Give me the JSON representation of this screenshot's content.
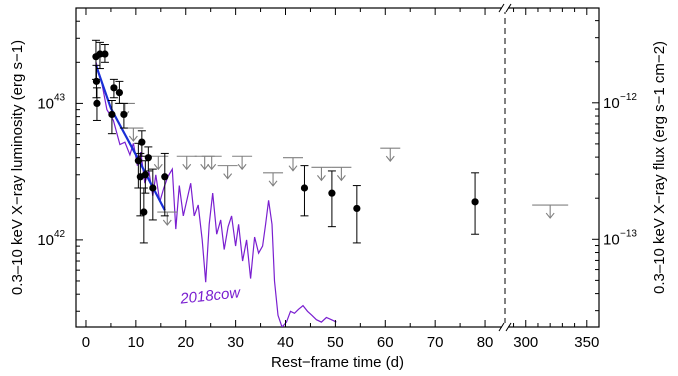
{
  "chart_data": {
    "type": "scatter",
    "title": "",
    "xlabel": "Rest−frame time (d)",
    "ylabel_left": "0.3–10 keV X−ray luminosity (erg s−1)",
    "ylabel_right": "0.3–10 keV X−ray flux (erg s−1 cm−2)",
    "x_axis_segments": [
      {
        "xlim": [
          -2,
          84
        ],
        "ticks": [
          "0",
          "10",
          "20",
          "30",
          "40",
          "50",
          "60",
          "70",
          "80"
        ],
        "tick_values": [
          0,
          10,
          20,
          30,
          40,
          50,
          60,
          70,
          80
        ]
      },
      {
        "xlim": [
          283,
          360
        ],
        "ticks": [
          "300",
          "350"
        ],
        "tick_values": [
          300,
          350
        ]
      }
    ],
    "yscale": "log",
    "ylim": [
      2.3e+41,
      5e+43
    ],
    "left_ticks": [
      {
        "label_base": "10",
        "label_exp": "42",
        "value": 1e+42
      },
      {
        "label_base": "10",
        "label_exp": "43",
        "value": 1e+43
      }
    ],
    "right_ticks": [
      {
        "label_base": "10",
        "label_exp": "−13",
        "value": 1e-13
      },
      {
        "label_base": "10",
        "label_exp": "−12",
        "value": 1e-12
      }
    ],
    "flux_per_luminosity": 9.9e-56,
    "break_day": 84,
    "colors": {
      "detections": "#000000",
      "upper_limits": "#808080",
      "fit": "#1a2fd6",
      "comparison": "#7a1fd0"
    },
    "annotation": {
      "text": "2018cow",
      "color": "#7a1fd0"
    },
    "series": [
      {
        "kind": "detections",
        "points": [
          {
            "x": 2.0,
            "y": 2.2e+43,
            "ylo": 1.5e+43,
            "yhi": 2.9e+43
          },
          {
            "x": 2.1,
            "y": 1.45e+43,
            "ylo": 1.1e+43,
            "yhi": 1.9e+43
          },
          {
            "x": 2.2,
            "y": 1e+43,
            "ylo": 7.5e+42,
            "yhi": 1.3e+43
          },
          {
            "x": 2.8,
            "y": 2.3e+43,
            "ylo": 1.8e+43,
            "yhi": 2.8e+43
          },
          {
            "x": 3.8,
            "y": 2.3e+43,
            "ylo": 2e+43,
            "yhi": 2.7e+43
          },
          {
            "x": 5.2,
            "y": 8.3e+42,
            "ylo": 6e+42,
            "yhi": 1.05e+43
          },
          {
            "x": 5.6,
            "y": 1.3e+43,
            "ylo": 1.1e+43,
            "yhi": 1.5e+43
          },
          {
            "x": 6.7,
            "y": 1.2e+43,
            "ylo": 1e+43,
            "yhi": 1.45e+43
          },
          {
            "x": 7.6,
            "y": 8.3e+42,
            "ylo": 6.6e+42,
            "yhi": 1e+43
          },
          {
            "x": 10.5,
            "y": 3.8e+42,
            "ylo": 2.4e+42,
            "yhi": 5.1e+42
          },
          {
            "x": 10.9,
            "y": 2.9e+42,
            "ylo": 1.5e+42,
            "yhi": 4.3e+42
          },
          {
            "x": 11.2,
            "y": 5.2e+42,
            "ylo": 4.1e+42,
            "yhi": 6.3e+42
          },
          {
            "x": 11.6,
            "y": 1.6e+42,
            "ylo": 9.5e+41,
            "yhi": 2.4e+42
          },
          {
            "x": 11.9,
            "y": 3e+42,
            "ylo": 2.2e+42,
            "yhi": 3.8e+42
          },
          {
            "x": 12.5,
            "y": 4e+42,
            "ylo": 3.2e+42,
            "yhi": 4.8e+42
          },
          {
            "x": 13.4,
            "y": 2.4e+42,
            "ylo": 1.4e+42,
            "yhi": 3.3e+42
          },
          {
            "x": 15.8,
            "y": 2.9e+42,
            "ylo": 1.5e+42,
            "yhi": 4.3e+42
          },
          {
            "x": 43.8,
            "y": 2.4e+42,
            "ylo": 1.5e+42,
            "yhi": 3.5e+42
          },
          {
            "x": 49.3,
            "y": 2.2e+42,
            "ylo": 1.25e+42,
            "yhi": 3.2e+42
          },
          {
            "x": 54.3,
            "y": 1.7e+42,
            "ylo": 9.5e+41,
            "yhi": 2.5e+42
          },
          {
            "x": 78.0,
            "y": 1.9e+42,
            "ylo": 1.1e+42,
            "yhi": 3.1e+42
          }
        ]
      },
      {
        "kind": "upper_limits",
        "points": [
          {
            "x": 7.8,
            "y": 1e+43
          },
          {
            "x": 9.5,
            "y": 6.6e+42
          },
          {
            "x": 14.5,
            "y": 4.1e+42
          },
          {
            "x": 16.3,
            "y": 1.6e+42
          },
          {
            "x": 20.2,
            "y": 4.1e+42
          },
          {
            "x": 23.8,
            "y": 4.1e+42
          },
          {
            "x": 25.2,
            "y": 4.1e+42
          },
          {
            "x": 28.4,
            "y": 3.5e+42
          },
          {
            "x": 31.3,
            "y": 4.1e+42
          },
          {
            "x": 37.5,
            "y": 3.1e+42
          },
          {
            "x": 41.5,
            "y": 4e+42
          },
          {
            "x": 47.2,
            "y": 3.4e+42
          },
          {
            "x": 51.2,
            "y": 3.4e+42
          },
          {
            "x": 61.0,
            "y": 4.7e+42
          },
          {
            "x": 320.0,
            "y": 1.8e+42
          }
        ]
      }
    ],
    "fit": [
      {
        "x": 2.0,
        "y": 1.9e+43
      },
      {
        "x": 5.0,
        "y": 9.2e+42
      },
      {
        "x": 10.0,
        "y": 4.2e+42
      },
      {
        "x": 15.8,
        "y": 1.65e+42
      }
    ],
    "comparison_curve": [
      {
        "x": 2.0,
        "y": 2e+43
      },
      {
        "x": 3.2,
        "y": 1.4e+43
      },
      {
        "x": 4.2,
        "y": 9e+42
      },
      {
        "x": 5.5,
        "y": 7.5e+42
      },
      {
        "x": 6.8,
        "y": 5e+42
      },
      {
        "x": 7.8,
        "y": 5.2e+42
      },
      {
        "x": 8.8,
        "y": 4.2e+42
      },
      {
        "x": 9.5,
        "y": 5.1e+42
      },
      {
        "x": 10.3,
        "y": 3.5e+42
      },
      {
        "x": 11.0,
        "y": 4.4e+42
      },
      {
        "x": 11.8,
        "y": 2.6e+42
      },
      {
        "x": 12.6,
        "y": 3.2e+42
      },
      {
        "x": 13.4,
        "y": 2.1e+42
      },
      {
        "x": 14.0,
        "y": 3e+42
      },
      {
        "x": 14.8,
        "y": 1.9e+42
      },
      {
        "x": 15.6,
        "y": 2.4e+42
      },
      {
        "x": 16.4,
        "y": 2.9e+42
      },
      {
        "x": 17.3,
        "y": 3.3e+42
      },
      {
        "x": 18.0,
        "y": 1.2e+42
      },
      {
        "x": 18.7,
        "y": 2.5e+42
      },
      {
        "x": 19.5,
        "y": 1.5e+42
      },
      {
        "x": 20.3,
        "y": 2e+42
      },
      {
        "x": 21.0,
        "y": 2.6e+42
      },
      {
        "x": 21.7,
        "y": 1.5e+42
      },
      {
        "x": 22.5,
        "y": 1.8e+42
      },
      {
        "x": 23.3,
        "y": 1e+42
      },
      {
        "x": 24.0,
        "y": 4.9e+41
      },
      {
        "x": 24.7,
        "y": 1.3e+42
      },
      {
        "x": 25.4,
        "y": 2.2e+42
      },
      {
        "x": 26.2,
        "y": 1.1e+42
      },
      {
        "x": 27.0,
        "y": 1.4e+42
      },
      {
        "x": 27.7,
        "y": 8.5e+41
      },
      {
        "x": 28.5,
        "y": 1.25e+42
      },
      {
        "x": 29.2,
        "y": 1.5e+42
      },
      {
        "x": 30.0,
        "y": 9e+41
      },
      {
        "x": 30.6,
        "y": 1.3e+42
      },
      {
        "x": 31.4,
        "y": 7e+41
      },
      {
        "x": 32.2,
        "y": 1e+42
      },
      {
        "x": 33.0,
        "y": 5.2e+41
      },
      {
        "x": 33.8,
        "y": 1.05e+42
      },
      {
        "x": 34.6,
        "y": 8e+41
      },
      {
        "x": 35.4,
        "y": 9e+41
      },
      {
        "x": 36.0,
        "y": 1.3e+42
      },
      {
        "x": 36.6,
        "y": 1.95e+42
      },
      {
        "x": 37.3,
        "y": 1.3e+42
      },
      {
        "x": 37.8,
        "y": 5e+41
      },
      {
        "x": 38.5,
        "y": 2.8e+41
      },
      {
        "x": 39.3,
        "y": 2.3e+41
      },
      {
        "x": 40.2,
        "y": 2.5e+41
      },
      {
        "x": 41.0,
        "y": 3e+41
      },
      {
        "x": 41.8,
        "y": 2.9e+41
      },
      {
        "x": 42.6,
        "y": 3.1e+41
      },
      {
        "x": 43.5,
        "y": 3.3e+41
      },
      {
        "x": 44.4,
        "y": 3e+41
      },
      {
        "x": 45.3,
        "y": 2.8e+41
      },
      {
        "x": 46.2,
        "y": 2.6e+41
      },
      {
        "x": 47.2,
        "y": 2.5e+41
      },
      {
        "x": 48.2,
        "y": 2.7e+41
      },
      {
        "x": 49.2,
        "y": 2.6e+41
      },
      {
        "x": 50.2,
        "y": 2.5e+41
      }
    ]
  }
}
